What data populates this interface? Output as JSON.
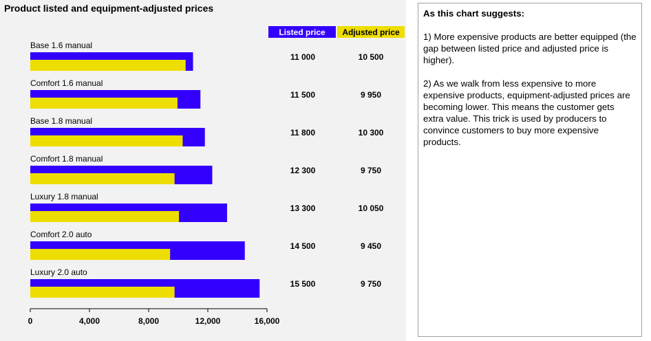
{
  "chart_data": {
    "type": "bar",
    "orientation": "horizontal",
    "title": "Product listed and equipment-adjusted prices",
    "categories": [
      "Base 1.6 manual",
      "Comfort 1.6 manual",
      "Base 1.8 manual",
      "Comfort 1.8 manual",
      "Luxury 1.8 manual",
      "Comfort 2.0 auto",
      "Luxury 2.0 auto"
    ],
    "series": [
      {
        "name": "Listed price",
        "color": "#3300ff",
        "values": [
          11000,
          11500,
          11800,
          12300,
          13300,
          14500,
          15500
        ]
      },
      {
        "name": "Adjusted price",
        "color": "#eedd00",
        "values": [
          10500,
          9950,
          10300,
          9750,
          10050,
          9450,
          9750
        ]
      }
    ],
    "value_labels": {
      "listed": [
        "11 000",
        "11 500",
        "11 800",
        "12 300",
        "13 300",
        "14 500",
        "15 500"
      ],
      "adjusted": [
        "10 500",
        "9 950",
        "10 300",
        "9 750",
        "10 050",
        "9 450",
        "9 750"
      ]
    },
    "xlim": [
      0,
      16000
    ],
    "xticks": [
      0,
      4000,
      8000,
      12000,
      16000
    ],
    "xtick_labels": [
      "0",
      "4,000",
      "8,000",
      "12,000",
      "16,000"
    ],
    "grid": false,
    "legend_position": "top-right"
  },
  "note": {
    "title": "As this chart suggests:",
    "paragraphs": [
      "1) More expensive products are better equipped (the gap between listed price and adjusted price is higher).",
      "2) As we walk from less expensive to more expensive products, equipment-adjusted prices are becoming lower. This means the customer gets extra value. This trick is used by producers to convince customers to buy more expensive products."
    ]
  }
}
